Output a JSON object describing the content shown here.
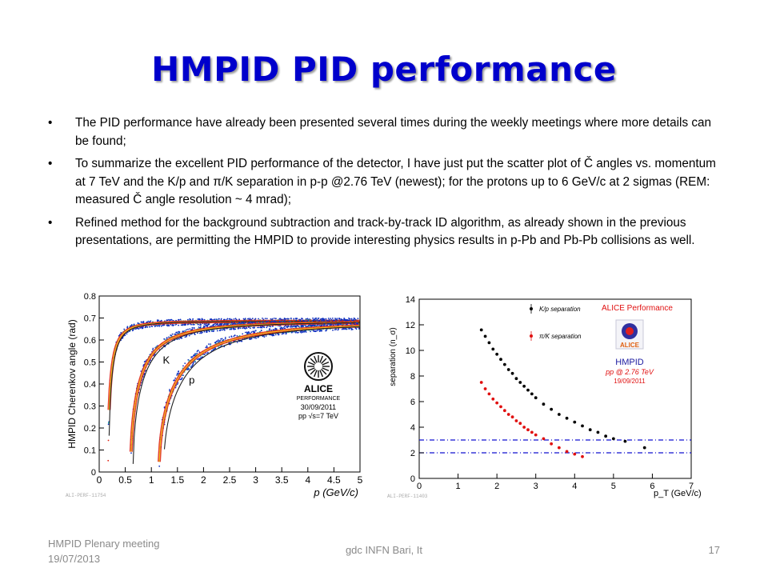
{
  "slide": {
    "title": "HMPID PID performance",
    "bullet_marker": "•",
    "bullets": [
      "The PID performance have already been presented several times during the weekly meetings where more details can be found;",
      "To summarize the excellent PID performance of the detector, I have just put the scatter plot of Č angles vs. momentum at 7 TeV and the K/p and  π/K separation in p-p @2.76 TeV (newest); for the protons up to 6 GeV/c at 2 sigmas (REM: measured Č angle resolution ~ 4 mrad);",
      "Refined method for the background subtraction and track-by-track ID algorithm, as already shown in the previous presentations, are permitting the HMPID to provide  interesting physics results in p-Pb and Pb-Pb collisions as well."
    ],
    "footer": {
      "left": "HMPID Plenary meeting 19/07/2013",
      "center": "gdc INFN Bari, It",
      "page": "17"
    }
  },
  "chart_data": [
    {
      "type": "scatter",
      "title": "",
      "xlabel": "p (GeV/c)",
      "ylabel": "HMPID Cherenkov angle (rad)",
      "xlim": [
        0,
        5
      ],
      "ylim": [
        0,
        0.8
      ],
      "xticks": [
        "0",
        "0.5",
        "1",
        "1.5",
        "2",
        "2.5",
        "3",
        "3.5",
        "4",
        "4.5",
        "5"
      ],
      "yticks": [
        "0",
        "0.1",
        "0.2",
        "0.3",
        "0.4",
        "0.5",
        "0.6",
        "0.7",
        "0.8"
      ],
      "bands": [
        {
          "name": "π",
          "label": "",
          "mass": 0.1396
        },
        {
          "name": "K",
          "label": "K",
          "mass": 0.4937
        },
        {
          "name": "p",
          "label": "p",
          "mass": 0.9383
        }
      ],
      "logo_text": [
        "ALICE",
        "PERFORMANCE",
        "30/09/2011",
        "pp √s=7 TeV"
      ],
      "tag": "ALI-PERF-11754",
      "colors": {
        "frame": "#000000",
        "band_low": "#1030c0",
        "band_mid": "#20c0a0",
        "band_high": "#e02010"
      }
    },
    {
      "type": "scatter",
      "title": "",
      "xlabel": "p_T (GeV/c)",
      "ylabel": "separation (n_σ)",
      "xlim": [
        0,
        7
      ],
      "ylim": [
        0,
        14
      ],
      "xticks": [
        "0",
        "1",
        "2",
        "3",
        "4",
        "5",
        "6",
        "7"
      ],
      "yticks": [
        "0",
        "2",
        "4",
        "6",
        "8",
        "10",
        "12",
        "14"
      ],
      "hlines": [
        2,
        3
      ],
      "series": [
        {
          "name": "K/p separation",
          "color": "#000000",
          "x": [
            1.6,
            1.7,
            1.8,
            1.9,
            2.0,
            2.1,
            2.2,
            2.3,
            2.4,
            2.5,
            2.6,
            2.7,
            2.8,
            2.9,
            3.0,
            3.2,
            3.4,
            3.6,
            3.8,
            4.0,
            4.2,
            4.4,
            4.6,
            4.8,
            5.0,
            5.3,
            5.8
          ],
          "y": [
            11.6,
            11.1,
            10.6,
            10.1,
            9.7,
            9.3,
            8.9,
            8.5,
            8.2,
            7.8,
            7.5,
            7.2,
            6.9,
            6.6,
            6.3,
            5.8,
            5.4,
            5.0,
            4.7,
            4.4,
            4.1,
            3.8,
            3.6,
            3.3,
            3.1,
            2.9,
            2.4
          ]
        },
        {
          "name": "π/K separation",
          "color": "#e01010",
          "x": [
            1.6,
            1.7,
            1.8,
            1.9,
            2.0,
            2.1,
            2.2,
            2.3,
            2.4,
            2.5,
            2.6,
            2.7,
            2.8,
            2.9,
            3.0,
            3.2,
            3.4,
            3.6,
            3.8,
            4.0,
            4.2
          ],
          "y": [
            7.5,
            7.0,
            6.6,
            6.2,
            5.9,
            5.6,
            5.3,
            5.0,
            4.8,
            4.5,
            4.3,
            4.0,
            3.8,
            3.6,
            3.4,
            3.1,
            2.7,
            2.4,
            2.1,
            1.9,
            1.7
          ]
        }
      ],
      "annotations": [
        "ALICE Performance",
        "HMPID",
        "pp @ 2.76 TeV",
        "19/09/2011"
      ],
      "logo_text": "ALICE",
      "tag": "ALI-PERF-11403",
      "colors": {
        "hline": "#1010d0",
        "annotation": "#e01010",
        "hmpid": "#1a1aa0"
      }
    }
  ]
}
